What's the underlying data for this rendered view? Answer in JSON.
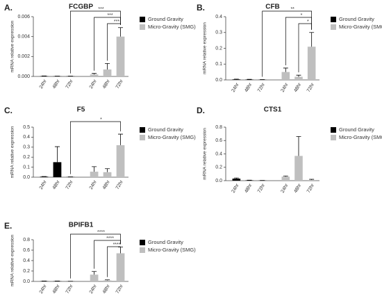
{
  "chart_data": [
    {
      "type": "bar",
      "panel": "A.",
      "title": "FCGBP",
      "ylabel": "mRNA relative expression",
      "categories": [
        "24hr",
        "48hr",
        "72hr",
        "24hr",
        "48hr",
        "72hr"
      ],
      "series": [
        {
          "name": "Ground Gravity",
          "color": "#000000",
          "values": [
            3e-05,
            2e-05,
            2e-05,
            null,
            null,
            null
          ],
          "errors": [
            2e-05,
            1e-05,
            1e-05,
            null,
            null,
            null
          ]
        },
        {
          "name": "Micro-Gravity (SMG)",
          "color": "#bfbfbf",
          "values": [
            null,
            null,
            null,
            0.0002,
            0.0007,
            0.004
          ],
          "errors": [
            null,
            null,
            null,
            0.0001,
            0.0006,
            0.0009
          ]
        }
      ],
      "ylim": [
        0,
        0.006
      ],
      "yticks": [
        {
          "value": 0,
          "label": "0.000"
        },
        0.002,
        0.004,
        0.006
      ],
      "comparisons": [
        {
          "from": 2,
          "to": 5,
          "label": "***"
        },
        {
          "from": 3,
          "to": 5,
          "label": "***"
        },
        {
          "from": 4,
          "to": 5,
          "label": "***"
        }
      ]
    },
    {
      "type": "bar",
      "panel": "B.",
      "title": "CFB",
      "ylabel": "mRNA relative expression",
      "categories": [
        "24hr",
        "48hr",
        "72hr",
        "24hr",
        "48hr",
        "72hr"
      ],
      "series": [
        {
          "name": "Ground Gravity",
          "color": "#000000",
          "values": [
            0.003,
            0.002,
            0.001,
            null,
            null,
            null
          ],
          "errors": [
            0.002,
            0.002,
            0.001,
            null,
            null,
            null
          ]
        },
        {
          "name": "Micro-Gravity (SMG)",
          "color": "#bfbfbf",
          "values": [
            null,
            null,
            null,
            0.05,
            0.02,
            0.21
          ],
          "errors": [
            null,
            null,
            null,
            0.025,
            0.01,
            0.09
          ]
        }
      ],
      "ylim": [
        0,
        0.4
      ],
      "yticks": [
        {
          "value": 0,
          "label": "0.0"
        },
        0.1,
        0.2,
        0.3,
        0.4
      ],
      "comparisons": [
        {
          "from": 2,
          "to": 5,
          "label": "**"
        },
        {
          "from": 3,
          "to": 5,
          "label": "*"
        },
        {
          "from": 4,
          "to": 5,
          "label": "*"
        }
      ]
    },
    {
      "type": "bar",
      "panel": "C.",
      "title": "F5",
      "ylabel": "mRNA relative expression",
      "categories": [
        "24hr",
        "48hr",
        "72hr",
        "24hr",
        "48hr",
        "72hr"
      ],
      "series": [
        {
          "name": "Ground Gravity",
          "color": "#000000",
          "values": [
            0.005,
            0.15,
            0.002,
            null,
            null,
            null
          ],
          "errors": [
            0.002,
            0.155,
            0.001,
            null,
            null,
            null
          ]
        },
        {
          "name": "Micro-Gravity (SMG)",
          "color": "#bfbfbf",
          "values": [
            null,
            null,
            null,
            0.055,
            0.05,
            0.32
          ],
          "errors": [
            null,
            null,
            null,
            0.05,
            0.035,
            0.11
          ]
        }
      ],
      "ylim": [
        0,
        0.5
      ],
      "yticks": [
        {
          "value": 0,
          "label": "0.0"
        },
        0.1,
        0.2,
        0.3,
        0.4,
        0.5
      ],
      "comparisons": [
        {
          "from": 2,
          "to": 5,
          "label": "*"
        }
      ]
    },
    {
      "type": "bar",
      "panel": "D.",
      "title": "CTS1",
      "ylabel": "mRNA relative expression",
      "categories": [
        "24hr",
        "48hr",
        "72hr",
        "24hr",
        "48hr",
        "72hr"
      ],
      "series": [
        {
          "name": "Ground Gravity",
          "color": "#000000",
          "values": [
            0.03,
            0.005,
            0.002,
            null,
            null,
            null
          ],
          "errors": [
            0.01,
            0.002,
            0.001,
            null,
            null,
            null
          ]
        },
        {
          "name": "Micro-Gravity (SMG)",
          "color": "#bfbfbf",
          "values": [
            null,
            null,
            null,
            0.06,
            0.37,
            0.01
          ],
          "errors": [
            null,
            null,
            null,
            0.01,
            0.29,
            0.01
          ]
        }
      ],
      "ylim": [
        0,
        0.8
      ],
      "yticks": [
        {
          "value": 0,
          "label": "0.0"
        },
        0.2,
        0.4,
        0.6,
        0.8
      ],
      "comparisons": []
    },
    {
      "type": "bar",
      "panel": "E.",
      "title": "BPIFB1",
      "ylabel": "mRNA relative expression",
      "categories": [
        "24hr",
        "48hr",
        "72hr",
        "24hr",
        "48hr",
        "72hr"
      ],
      "series": [
        {
          "name": "Ground Gravity",
          "color": "#000000",
          "values": [
            0.005,
            0.005,
            0.002,
            null,
            null,
            null
          ],
          "errors": [
            0.003,
            0.003,
            0.001,
            null,
            null,
            null
          ]
        },
        {
          "name": "Micro-Gravity (SMG)",
          "color": "#bfbfbf",
          "values": [
            null,
            null,
            null,
            0.13,
            0.02,
            0.54
          ],
          "errors": [
            null,
            null,
            null,
            0.06,
            0.01,
            0.12
          ]
        }
      ],
      "ylim": [
        0,
        0.8
      ],
      "yticks": [
        {
          "value": 0,
          "label": "0.0"
        },
        0.2,
        0.4,
        0.6,
        0.8
      ],
      "comparisons": [
        {
          "from": 2,
          "to": 5,
          "label": "****"
        },
        {
          "from": 3,
          "to": 5,
          "label": "****"
        },
        {
          "from": 4,
          "to": 5,
          "label": "****"
        }
      ]
    }
  ]
}
